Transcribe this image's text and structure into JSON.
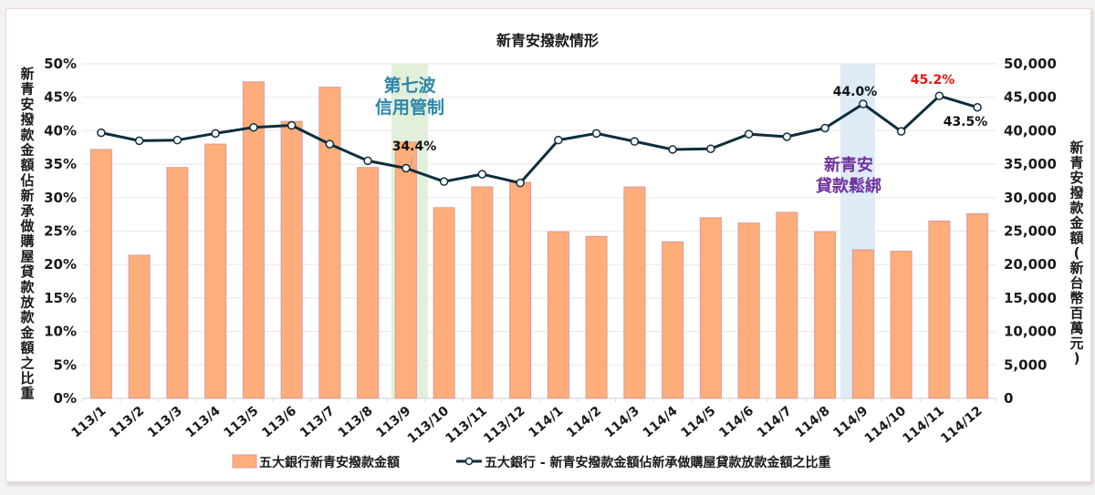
{
  "chart_data": {
    "type": "bar+line",
    "title": "新青安撥款情形",
    "categories": [
      "113/1",
      "113/2",
      "113/3",
      "113/4",
      "113/5",
      "113/6",
      "113/7",
      "113/8",
      "113/9",
      "113/10",
      "113/11",
      "113/12",
      "114/1",
      "114/2",
      "114/3",
      "114/4",
      "114/5",
      "114/6",
      "114/7",
      "114/8",
      "114/9",
      "114/10",
      "114/11",
      "114/12"
    ],
    "series": [
      {
        "name": "五大銀行新青安撥款金額",
        "type": "bar",
        "axis": "right",
        "color": "#ffad7a",
        "border_color": "#d99a9a",
        "values": [
          37200,
          21400,
          34500,
          38000,
          47300,
          41400,
          46500,
          34500,
          38300,
          28500,
          31600,
          32300,
          24900,
          24200,
          31600,
          23400,
          27000,
          26200,
          27800,
          24900,
          22200,
          22000,
          26500,
          27600
        ]
      },
      {
        "name": "五大銀行 - 新青安撥款金額佔新承做購屋貸款放款金額之比重",
        "type": "line",
        "axis": "left",
        "color": "#0e2d3d",
        "marker": "open-circle",
        "values": [
          39.7,
          38.5,
          38.6,
          39.6,
          40.5,
          40.8,
          38.0,
          35.5,
          34.4,
          32.4,
          33.5,
          32.2,
          38.6,
          39.6,
          38.4,
          37.2,
          37.3,
          39.5,
          39.1,
          40.4,
          44.0,
          39.9,
          45.2,
          43.5
        ]
      }
    ],
    "left_axis": {
      "label": "新青安撥款金額佔新承做購屋貸款放款金額之比重",
      "ylim": [
        0,
        50
      ],
      "ticks": [
        "0%",
        "5%",
        "10%",
        "15%",
        "20%",
        "25%",
        "30%",
        "35%",
        "40%",
        "45%",
        "50%"
      ]
    },
    "right_axis": {
      "label": "新青安撥款金額(新台幣百萬元)",
      "ylim": [
        0,
        50000
      ],
      "ticks": [
        "0",
        "5,000",
        "10,000",
        "15,000",
        "20,000",
        "25,000",
        "30,000",
        "35,000",
        "40,000",
        "45,000",
        "50,000"
      ]
    },
    "data_labels": [
      {
        "index": 8,
        "text": "34.4%",
        "color": "#111111"
      },
      {
        "index": 20,
        "text": "44.0%",
        "color": "#111111"
      },
      {
        "index": 22,
        "text": "45.2%",
        "color": "#ee1111"
      },
      {
        "index": 23,
        "text": "43.5%",
        "color": "#111111"
      }
    ],
    "annotations": [
      {
        "index": 8,
        "line1": "第七波",
        "line2": "信用管制",
        "color": "#2e86a8",
        "band_color": "#e2efd9"
      },
      {
        "index": 20,
        "line1": "新青安",
        "line2": "貸款鬆綁",
        "color": "#7030a0",
        "band_color": "#ddebf7"
      }
    ],
    "grid": true,
    "legend_position": "bottom"
  },
  "title": "新青安撥款情形",
  "left_axis_label": "新青安撥款金額佔新承做購屋貸款放款金額之比重",
  "right_axis_label": "新青安撥款金額(新台幣百萬元)",
  "legend": {
    "bar_label": "五大銀行新青安撥款金額",
    "line_label": "五大銀行 - 新青安撥款金額佔新承做購屋貸款放款金額之比重"
  },
  "annotations": {
    "credit_control_1": "第七波",
    "credit_control_2": "信用管制",
    "loosening_1": "新青安",
    "loosening_2": "貸款鬆綁"
  },
  "labels": {
    "l_9": "34.4%",
    "l_21": "44.0%",
    "l_23": "45.2%",
    "l_24": "43.5%"
  }
}
